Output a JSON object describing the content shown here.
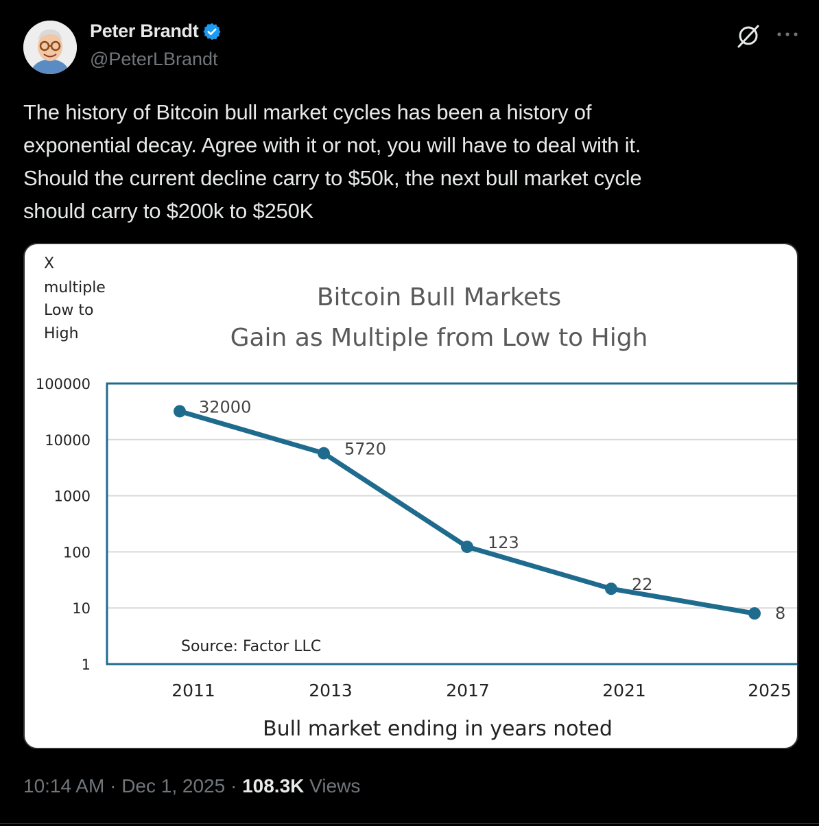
{
  "author": {
    "display_name": "Peter Brandt",
    "handle": "@PeterLBrandt",
    "verified_color": "#1d9bf0"
  },
  "icons": {
    "avatar": "avatar-image",
    "verified": "verified-badge-icon",
    "grok": "grok-icon",
    "more": "more-options-icon"
  },
  "tweet": {
    "text": "The history of Bitcoin bull market cycles has been a history of\nexponential decay. Agree with it or not, you will have to deal with it.\nShould the current decline carry to $50k, the next bull market cycle\nshould carry to $200k to $250K"
  },
  "meta": {
    "time": "10:14 AM",
    "separator": "·",
    "date": "Dec 1, 2025",
    "views_count": "108.3K",
    "views_label": "Views"
  },
  "chart_data": {
    "type": "line",
    "title_line1": "Bitcoin Bull Markets",
    "title_line2": "Gain as Multiple from Low to High",
    "ylabel_lines": [
      "X",
      "multiple",
      "Low to",
      "High"
    ],
    "xlabel": "Bull market ending in years noted",
    "source": "Source: Factor LLC",
    "y_scale": "log",
    "ylim": [
      1,
      100000
    ],
    "y_ticks": [
      "100000",
      "10000",
      "1000",
      "100",
      "10",
      "1"
    ],
    "categories": [
      "2011",
      "2013",
      "2017",
      "2021",
      "2025"
    ],
    "values": [
      32000,
      5720,
      123,
      22,
      8
    ],
    "data_labels": [
      "32000",
      "5720",
      "123",
      "22",
      "8"
    ],
    "line_color": "#1f6b8e",
    "grid": true
  }
}
